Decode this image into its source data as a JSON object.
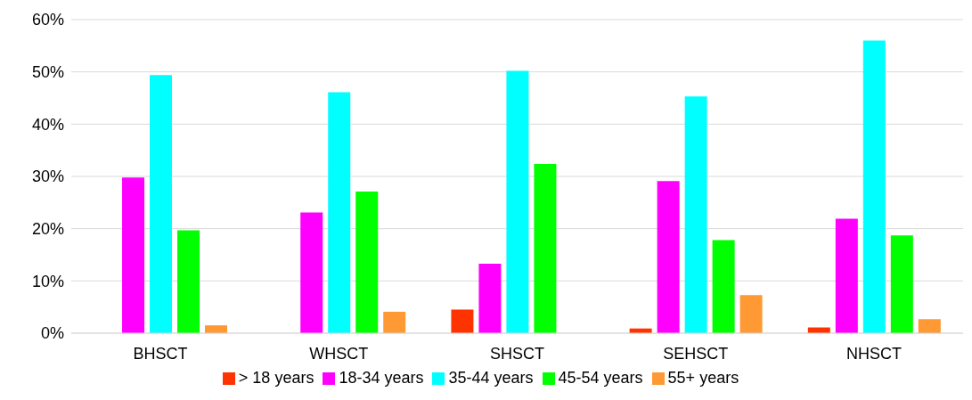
{
  "chart_data": {
    "type": "bar",
    "categories": [
      "BHSCT",
      "WHSCT",
      "SHSCT",
      "SEHSCT",
      "NHSCT"
    ],
    "series": [
      {
        "name": "> 18 years",
        "color": "#ff3300",
        "values": [
          0,
          0,
          4.5,
          0.9,
          1.1
        ]
      },
      {
        "name": "18-34 years",
        "color": "#ff00ff",
        "values": [
          29.8,
          23.1,
          13.3,
          29.1,
          21.9
        ]
      },
      {
        "name": "35-44 years",
        "color": "#00ffff",
        "values": [
          49.4,
          46.1,
          50.2,
          45.3,
          56.0
        ]
      },
      {
        "name": "45-54 years",
        "color": "#00ff00",
        "values": [
          19.7,
          27.1,
          32.4,
          17.8,
          18.7
        ]
      },
      {
        "name": "55+ years",
        "color": "#ff9933",
        "values": [
          1.5,
          4.1,
          0,
          7.3,
          2.7
        ]
      }
    ],
    "ylim": [
      0,
      60
    ],
    "yticks": [
      {
        "value": 0,
        "label": "0%"
      },
      {
        "value": 10,
        "label": "10%"
      },
      {
        "value": 20,
        "label": "20%"
      },
      {
        "value": 30,
        "label": "30%"
      },
      {
        "value": 40,
        "label": "40%"
      },
      {
        "value": 50,
        "label": "50%"
      },
      {
        "value": 60,
        "label": "60%"
      }
    ],
    "grid": "y",
    "legend": "bottom"
  }
}
